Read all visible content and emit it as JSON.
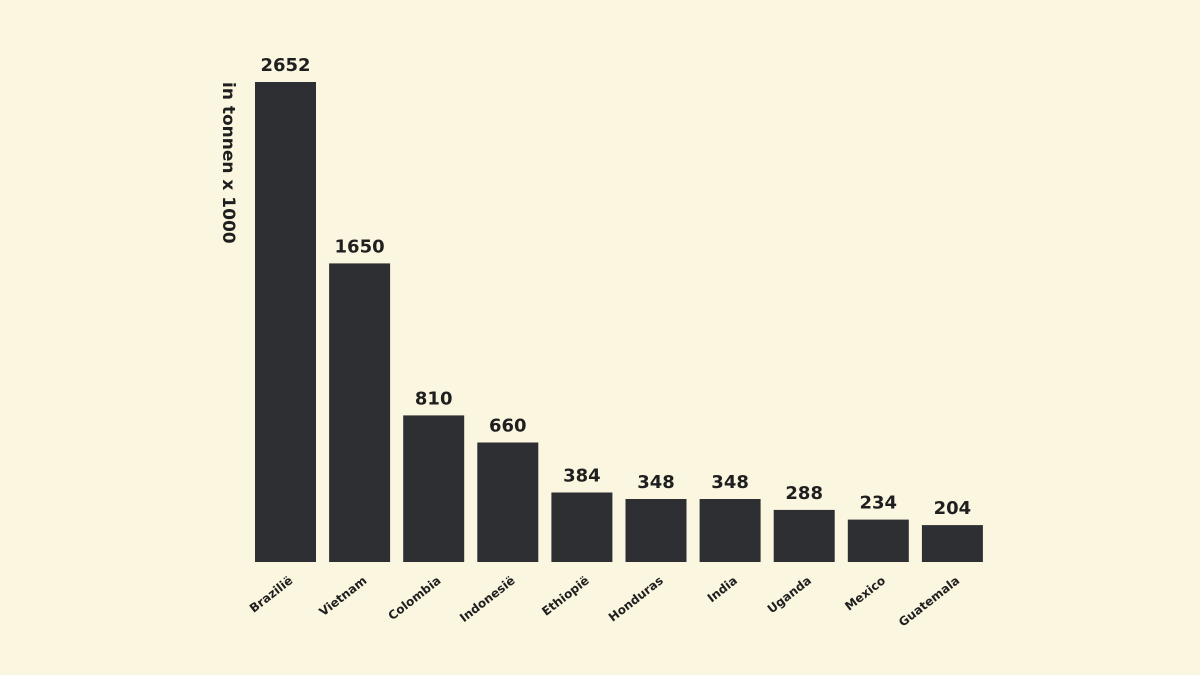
{
  "chart_data": {
    "type": "bar",
    "title": "",
    "xlabel": "",
    "ylabel": "in tonnen x 1000",
    "categories": [
      "Brazilië",
      "Vietnam",
      "Colombia",
      "Indonesië",
      "Ethiopië",
      "Honduras",
      "India",
      "Uganda",
      "Mexico",
      "Guatemala"
    ],
    "values": [
      2652,
      1650,
      810,
      660,
      384,
      348,
      348,
      288,
      234,
      204
    ],
    "ylim": [
      0,
      2652
    ],
    "grid": false,
    "legend": "none",
    "colors": {
      "background": "#fbf6e0",
      "bar": "#2d2f33",
      "text": "#1f1f1f"
    }
  }
}
